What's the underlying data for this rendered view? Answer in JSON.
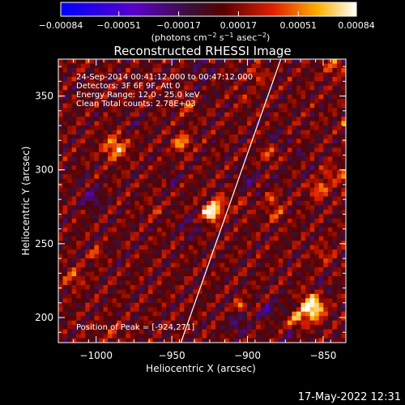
{
  "chart_data": {
    "type": "heatmap",
    "title": "Reconstructed RHESSI Image",
    "xlabel": "Heliocentric X (arcsec)",
    "ylabel": "Heliocentric Y (arcsec)",
    "xlim": [
      -1025,
      -835
    ],
    "ylim": [
      183,
      375
    ],
    "x_ticks": [
      -1000,
      -950,
      -900,
      -850
    ],
    "y_ticks": [
      200,
      250,
      300,
      350
    ],
    "x_tick_labels": [
      "−1000",
      "−950",
      "−900",
      "−850"
    ],
    "y_tick_labels": [
      "200",
      "250",
      "300",
      "350"
    ],
    "colorbar": {
      "min": -0.00084,
      "max": 0.00084,
      "ticks": [
        -0.00084,
        -0.00051,
        -0.00017,
        0.00017,
        0.00051,
        0.00084
      ],
      "tick_labels": [
        "−0.00084",
        "−0.00051",
        "−0.00017",
        "0.00017",
        "0.00051",
        "0.00084"
      ],
      "unit_label_parts": [
        "(photons cm",
        "−2",
        " s",
        "−1",
        " asec",
        "−2",
        ")"
      ]
    },
    "annotations": [
      "24-Sep-2014 00:41:12.000 to 00:47:12.000",
      "Detectors: 3F 6F 9F, Att 0",
      "Energy Range: 12.0 - 25.0 keV",
      "Clean     Total counts: 2.78E+03"
    ],
    "peak_label": "Position of Peak = [-924,271]",
    "peak": {
      "x": -924,
      "y": 271
    },
    "limb_line": [
      {
        "x": -944,
        "y": 183
      },
      {
        "x": -878,
        "y": 375
      }
    ],
    "grid": false,
    "colormap": "rainbow-like (blue-purple-red-yellow-white)"
  },
  "footer": {
    "date": "17-May-2022 12:31"
  }
}
